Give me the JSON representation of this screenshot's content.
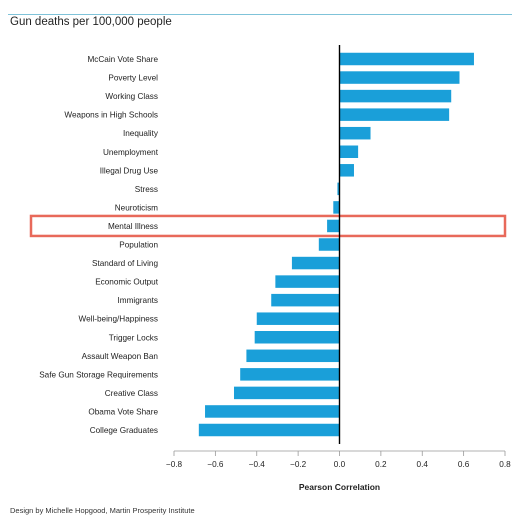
{
  "chart_data": {
    "type": "bar",
    "orientation": "horizontal",
    "title": "Gun deaths per 100,000 people",
    "xlabel": "Pearson Correlation",
    "ylabel": "",
    "xlim": [
      -0.8,
      0.8
    ],
    "ticks": [
      "−0.8",
      "−0.6",
      "−0.4",
      "−0.2",
      "0.0",
      "0.2",
      "0.4",
      "0.6",
      "0.8"
    ],
    "tick_values": [
      -0.8,
      -0.6,
      -0.4,
      -0.2,
      0.0,
      0.2,
      0.4,
      0.6,
      0.8
    ],
    "categories": [
      "McCain Vote Share",
      "Poverty Level",
      "Working Class",
      "Weapons in High Schools",
      "Inequality",
      "Unemployment",
      "Illegal Drug Use",
      "Stress",
      "Neuroticism",
      "Mental Illness",
      "Population",
      "Standard of Living",
      "Economic Output",
      "Immigrants",
      "Well-being/Happiness",
      "Trigger Locks",
      "Assault Weapon Ban",
      "Safe Gun Storage Requirements",
      "Creative Class",
      "Obama Vote Share",
      "College Graduates"
    ],
    "values": [
      0.65,
      0.58,
      0.54,
      0.53,
      0.15,
      0.09,
      0.07,
      -0.01,
      -0.03,
      -0.06,
      -0.1,
      -0.23,
      -0.31,
      -0.33,
      -0.4,
      -0.41,
      -0.45,
      -0.48,
      -0.51,
      -0.65,
      -0.68
    ],
    "highlight": "Mental Illness",
    "grid": false,
    "legend": "none",
    "colors": {
      "bar": "#1a9fd9",
      "highlight_box": "#e8695a",
      "axis": "#000000"
    }
  },
  "credit": "Design by Michelle Hopgood, Martin Prosperity Institute"
}
